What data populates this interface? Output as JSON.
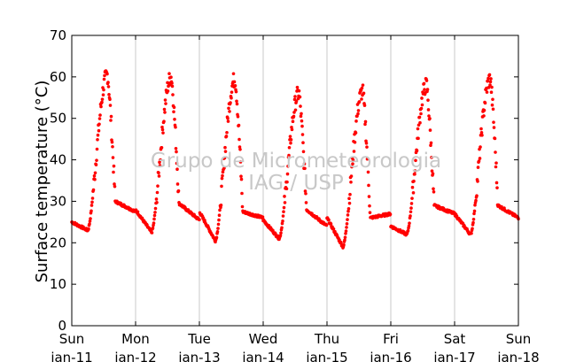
{
  "chart_data": {
    "type": "scatter",
    "title": "",
    "xlabel": "",
    "ylabel": "Surface temperature (°C)",
    "ylim": [
      0,
      70
    ],
    "yticks": [
      0,
      10,
      20,
      30,
      40,
      50,
      60,
      70
    ],
    "xlim": [
      "Sun jan-11",
      "Sun jan-18"
    ],
    "xtick_labels": [
      [
        "Sun",
        "jan-11"
      ],
      [
        "Mon",
        "jan-12"
      ],
      [
        "Tue",
        "jan-13"
      ],
      [
        "Wed",
        "jan-14"
      ],
      [
        "Thu",
        "jan-15"
      ],
      [
        "Fri",
        "jan-16"
      ],
      [
        "Sat",
        "jan-17"
      ],
      [
        "Sun",
        "jan-18"
      ]
    ],
    "grid": "vertical",
    "marker_color": "#ff0000",
    "watermark": [
      "Grupo de Micrometeorologia",
      "IAG / USP"
    ],
    "series": [
      {
        "x": [
          "Sun jan-11",
          "Mon jan-12",
          "Tue jan-13",
          "Wed jan-14",
          "Thu jan-15",
          "Fri jan-16",
          "Sat jan-17",
          "Sun jan-18"
        ],
        "daily_max": [
          60.5,
          60,
          59.5,
          56,
          56.5,
          58,
          59.5,
          26
        ],
        "daily_min": [
          23,
          22.5,
          20.5,
          21,
          19,
          22,
          22,
          26
        ]
      }
    ]
  }
}
